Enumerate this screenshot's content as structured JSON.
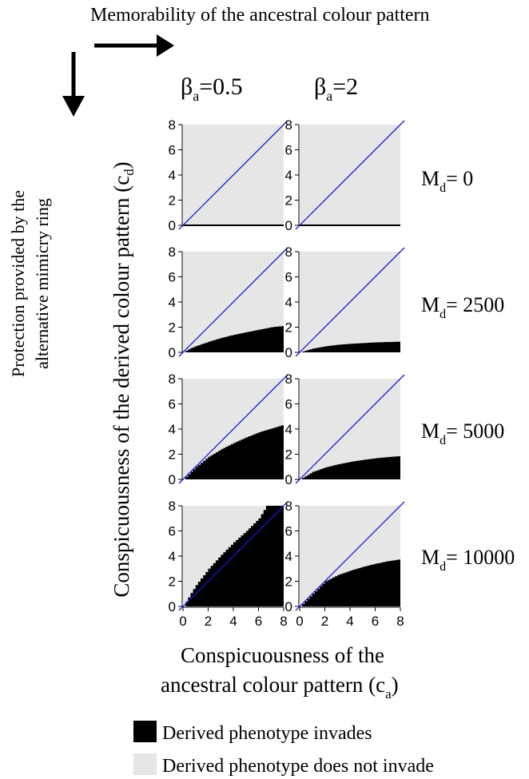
{
  "top_arrow_label": "Memorability of the ancestral colour pattern",
  "left_arrow_label": [
    "Protection provided by the",
    "alternative mimicry ring"
  ],
  "column_headers": [
    {
      "symbol": "β",
      "subscript": "a",
      "value": "=0.5"
    },
    {
      "symbol": "β",
      "subscript": "a",
      "value": "=2"
    }
  ],
  "row_labels": [
    {
      "symbol": "M",
      "subscript": "d",
      "value": "= 0"
    },
    {
      "symbol": "M",
      "subscript": "d",
      "value": "= 2500"
    },
    {
      "symbol": "M",
      "subscript": "d",
      "value": "= 5000"
    },
    {
      "symbol": "M",
      "subscript": "d",
      "value": "= 10000"
    }
  ],
  "ylabel": {
    "text": "Conspicuousness of the derived colour pattern (c",
    "subscript": "d",
    "end": ")"
  },
  "xlabel": {
    "line1": "Conspicuousness of the",
    "line2": "ancestral colour pattern (c",
    "subscript": "a",
    "end": ")"
  },
  "legend": [
    {
      "label": "Derived phenotype invades",
      "color": "#000000"
    },
    {
      "label": "Derived phenotype does not invade",
      "color": "#e6e6e6"
    }
  ],
  "colors": {
    "not_invade": "#e6e6e6",
    "invade": "#000000",
    "diagonal": "#1a1adb"
  },
  "chart_data": {
    "type": "heatmap",
    "xlim": [
      0,
      8
    ],
    "ylim": [
      0,
      8
    ],
    "x_ticks": [
      0,
      2,
      4,
      6,
      8
    ],
    "y_ticks": [
      0,
      2,
      4,
      6,
      8
    ],
    "reference_line": "cd = ca",
    "panels": [
      {
        "beta_a": 0.5,
        "M_d": 0,
        "boundary_ca": [
          0,
          2,
          4,
          6,
          8
        ],
        "boundary_cd": [
          0,
          0,
          0,
          0,
          0
        ]
      },
      {
        "beta_a": 2,
        "M_d": 0,
        "boundary_ca": [
          0,
          2,
          4,
          6,
          8
        ],
        "boundary_cd": [
          0,
          0,
          0,
          0,
          0
        ]
      },
      {
        "beta_a": 0.5,
        "M_d": 2500,
        "boundary_ca": [
          0,
          0.5,
          1,
          2,
          3,
          4,
          5,
          6,
          7,
          8
        ],
        "boundary_cd": [
          0,
          0.3,
          0.5,
          0.85,
          1.15,
          1.4,
          1.6,
          1.8,
          2.0,
          2.1
        ]
      },
      {
        "beta_a": 2,
        "M_d": 2500,
        "boundary_ca": [
          0,
          0.5,
          1,
          2,
          3,
          4,
          5,
          6,
          7,
          8
        ],
        "boundary_cd": [
          0,
          0.15,
          0.3,
          0.48,
          0.6,
          0.68,
          0.74,
          0.79,
          0.82,
          0.85
        ]
      },
      {
        "beta_a": 0.5,
        "M_d": 5000,
        "boundary_ca": [
          0,
          0.5,
          1,
          2,
          3,
          4,
          5,
          6,
          7,
          8
        ],
        "boundary_cd": [
          0,
          0.5,
          1.0,
          1.8,
          2.4,
          2.9,
          3.35,
          3.75,
          4.05,
          4.35
        ]
      },
      {
        "beta_a": 2,
        "M_d": 5000,
        "boundary_ca": [
          0,
          0.5,
          1,
          2,
          3,
          4,
          5,
          6,
          7,
          8
        ],
        "boundary_cd": [
          0,
          0.3,
          0.6,
          0.95,
          1.2,
          1.4,
          1.55,
          1.68,
          1.78,
          1.85
        ]
      },
      {
        "beta_a": 0.5,
        "M_d": 10000,
        "boundary_ca": [
          0,
          0.5,
          1,
          2,
          3,
          4,
          5,
          6,
          6.6,
          8
        ],
        "boundary_cd": [
          0,
          0.9,
          1.7,
          3.0,
          4.1,
          5.1,
          6.0,
          7.0,
          8.0,
          8.0
        ]
      },
      {
        "beta_a": 2,
        "M_d": 10000,
        "boundary_ca": [
          0,
          0.5,
          1,
          2,
          3,
          4,
          5,
          6,
          7,
          8
        ],
        "boundary_cd": [
          0,
          0.5,
          1.0,
          2.0,
          2.5,
          2.85,
          3.15,
          3.4,
          3.6,
          3.75
        ]
      }
    ]
  }
}
